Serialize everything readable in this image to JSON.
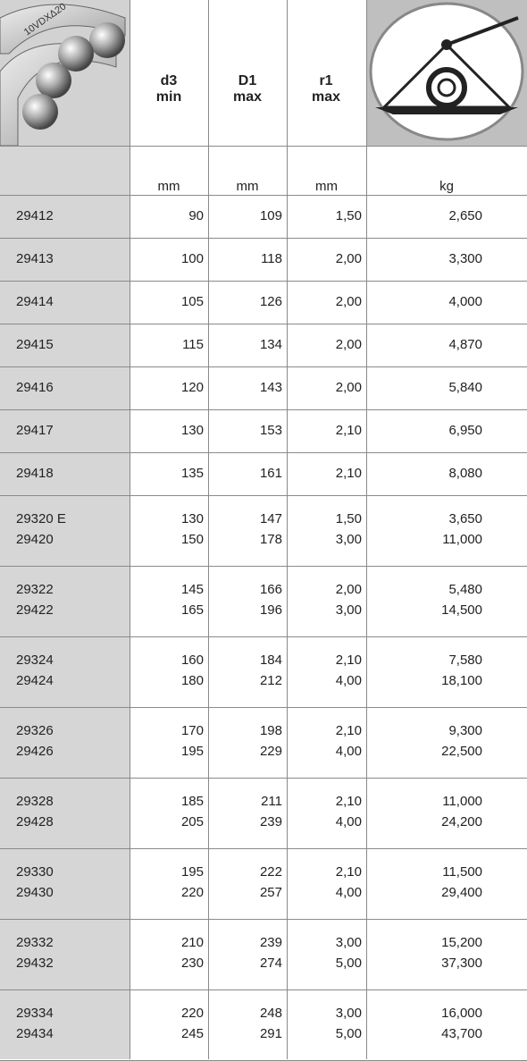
{
  "header": {
    "logo_text": "10VDXΔ20",
    "columns": [
      [
        "d3",
        "min"
      ],
      [
        "D1",
        "max"
      ],
      [
        "r1",
        "max"
      ]
    ],
    "units": [
      "mm",
      "mm",
      "mm",
      "kg"
    ]
  },
  "table": {
    "rows": [
      [
        [
          "29412",
          "90",
          "109",
          "1,50",
          "2,650"
        ]
      ],
      [
        [
          "29413",
          "100",
          "118",
          "2,00",
          "3,300"
        ]
      ],
      [
        [
          "29414",
          "105",
          "126",
          "2,00",
          "4,000"
        ]
      ],
      [
        [
          "29415",
          "115",
          "134",
          "2,00",
          "4,870"
        ]
      ],
      [
        [
          "29416",
          "120",
          "143",
          "2,00",
          "5,840"
        ]
      ],
      [
        [
          "29417",
          "130",
          "153",
          "2,10",
          "6,950"
        ]
      ],
      [
        [
          "29418",
          "135",
          "161",
          "2,10",
          "8,080"
        ]
      ],
      [
        [
          "29320 E",
          "130",
          "147",
          "1,50",
          "3,650"
        ],
        [
          "29420",
          "150",
          "178",
          "3,00",
          "11,000"
        ]
      ],
      [
        [
          "29322",
          "145",
          "166",
          "2,00",
          "5,480"
        ],
        [
          "29422",
          "165",
          "196",
          "3,00",
          "14,500"
        ]
      ],
      [
        [
          "29324",
          "160",
          "184",
          "2,10",
          "7,580"
        ],
        [
          "29424",
          "180",
          "212",
          "4,00",
          "18,100"
        ]
      ],
      [
        [
          "29326",
          "170",
          "198",
          "2,10",
          "9,300"
        ],
        [
          "29426",
          "195",
          "229",
          "4,00",
          "22,500"
        ]
      ],
      [
        [
          "29328",
          "185",
          "211",
          "2,10",
          "11,000"
        ],
        [
          "29428",
          "205",
          "239",
          "4,00",
          "24,200"
        ]
      ],
      [
        [
          "29330",
          "195",
          "222",
          "2,10",
          "11,500"
        ],
        [
          "29430",
          "220",
          "257",
          "4,00",
          "29,400"
        ]
      ],
      [
        [
          "29332",
          "210",
          "239",
          "3,00",
          "15,200"
        ],
        [
          "29432",
          "230",
          "274",
          "5,00",
          "37,300"
        ]
      ],
      [
        [
          "29334",
          "220",
          "248",
          "3,00",
          "16,000"
        ],
        [
          "29434",
          "245",
          "291",
          "5,00",
          "43,700"
        ]
      ]
    ]
  }
}
